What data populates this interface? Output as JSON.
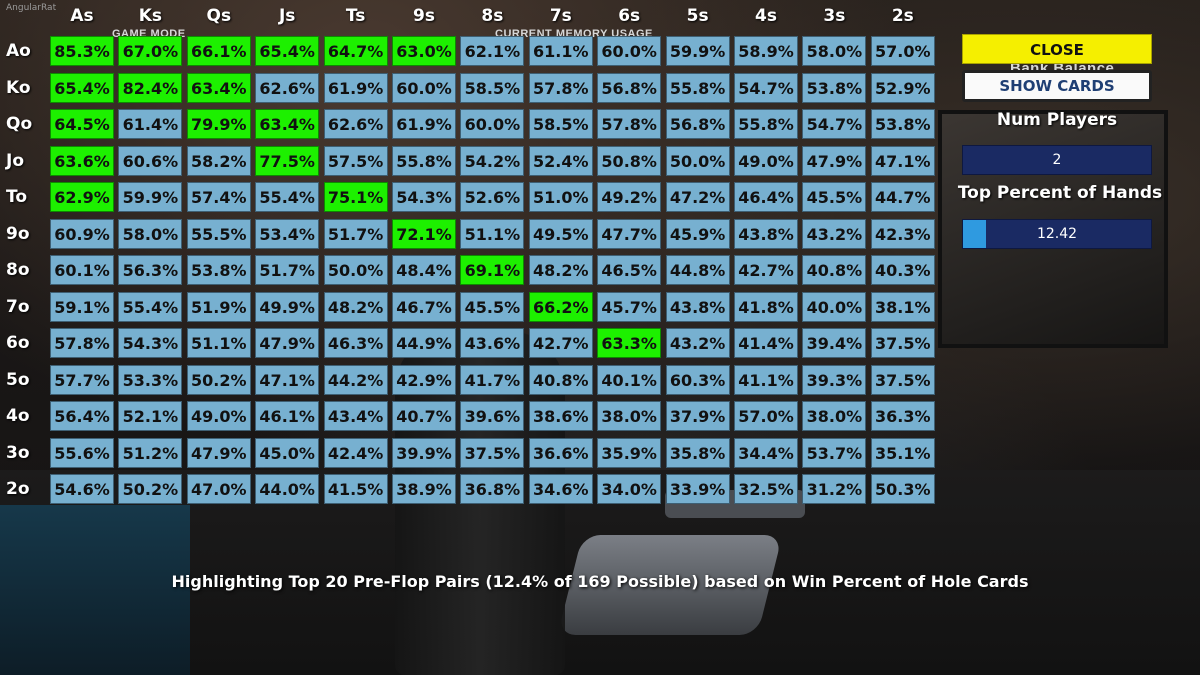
{
  "app": {
    "user_label": "AngularRat"
  },
  "ghost": {
    "game_mode": "GAME MODE",
    "current_memory": "CURRENT MEMORY USAGE",
    "bank_balance": "Bank Balance"
  },
  "grid": {
    "columns": [
      "As",
      "Ks",
      "Qs",
      "Js",
      "Ts",
      "9s",
      "8s",
      "7s",
      "6s",
      "5s",
      "4s",
      "3s",
      "2s"
    ],
    "rows": [
      "Ao",
      "Ko",
      "Qo",
      "Jo",
      "To",
      "9o",
      "8o",
      "7o",
      "6o",
      "5o",
      "4o",
      "3o",
      "2o"
    ],
    "cells": [
      [
        "85.3%",
        "67.0%",
        "66.1%",
        "65.4%",
        "64.7%",
        "63.0%",
        "62.1%",
        "61.1%",
        "60.0%",
        "59.9%",
        "58.9%",
        "58.0%",
        "57.0%"
      ],
      [
        "65.4%",
        "82.4%",
        "63.4%",
        "62.6%",
        "61.9%",
        "60.0%",
        "58.5%",
        "57.8%",
        "56.8%",
        "55.8%",
        "54.7%",
        "53.8%",
        "52.9%"
      ],
      [
        "64.5%",
        "61.4%",
        "79.9%",
        "63.4%",
        "62.6%",
        "61.9%",
        "60.0%",
        "58.5%",
        "57.8%",
        "56.8%",
        "55.8%",
        "54.7%",
        "53.8%"
      ],
      [
        "63.6%",
        "60.6%",
        "58.2%",
        "77.5%",
        "57.5%",
        "55.8%",
        "54.2%",
        "52.4%",
        "50.8%",
        "50.0%",
        "49.0%",
        "47.9%",
        "47.1%"
      ],
      [
        "62.9%",
        "59.9%",
        "57.4%",
        "55.4%",
        "75.1%",
        "54.3%",
        "52.6%",
        "51.0%",
        "49.2%",
        "47.2%",
        "46.4%",
        "45.5%",
        "44.7%"
      ],
      [
        "60.9%",
        "58.0%",
        "55.5%",
        "53.4%",
        "51.7%",
        "72.1%",
        "51.1%",
        "49.5%",
        "47.7%",
        "45.9%",
        "43.8%",
        "43.2%",
        "42.3%"
      ],
      [
        "60.1%",
        "56.3%",
        "53.8%",
        "51.7%",
        "50.0%",
        "48.4%",
        "69.1%",
        "48.2%",
        "46.5%",
        "44.8%",
        "42.7%",
        "40.8%",
        "40.3%"
      ],
      [
        "59.1%",
        "55.4%",
        "51.9%",
        "49.9%",
        "48.2%",
        "46.7%",
        "45.5%",
        "66.2%",
        "45.7%",
        "43.8%",
        "41.8%",
        "40.0%",
        "38.1%"
      ],
      [
        "57.8%",
        "54.3%",
        "51.1%",
        "47.9%",
        "46.3%",
        "44.9%",
        "43.6%",
        "42.7%",
        "63.3%",
        "43.2%",
        "41.4%",
        "39.4%",
        "37.5%"
      ],
      [
        "57.7%",
        "53.3%",
        "50.2%",
        "47.1%",
        "44.2%",
        "42.9%",
        "41.7%",
        "40.8%",
        "40.1%",
        "60.3%",
        "41.1%",
        "39.3%",
        "37.5%"
      ],
      [
        "56.4%",
        "52.1%",
        "49.0%",
        "46.1%",
        "43.4%",
        "40.7%",
        "39.6%",
        "38.6%",
        "38.0%",
        "37.9%",
        "57.0%",
        "38.0%",
        "36.3%"
      ],
      [
        "55.6%",
        "51.2%",
        "47.9%",
        "45.0%",
        "42.4%",
        "39.9%",
        "37.5%",
        "36.6%",
        "35.9%",
        "35.8%",
        "34.4%",
        "53.7%",
        "35.1%"
      ],
      [
        "54.6%",
        "50.2%",
        "47.0%",
        "44.0%",
        "41.5%",
        "38.9%",
        "36.8%",
        "34.6%",
        "34.0%",
        "33.9%",
        "32.5%",
        "31.2%",
        "50.3%"
      ]
    ],
    "highlighted": [
      [
        0,
        0
      ],
      [
        0,
        1
      ],
      [
        0,
        2
      ],
      [
        0,
        3
      ],
      [
        0,
        4
      ],
      [
        0,
        5
      ],
      [
        1,
        0
      ],
      [
        1,
        1
      ],
      [
        1,
        2
      ],
      [
        2,
        0
      ],
      [
        2,
        2
      ],
      [
        2,
        3
      ],
      [
        3,
        0
      ],
      [
        3,
        3
      ],
      [
        4,
        0
      ],
      [
        4,
        4
      ],
      [
        5,
        5
      ],
      [
        6,
        6
      ],
      [
        7,
        7
      ],
      [
        8,
        8
      ]
    ],
    "colors": {
      "normal": "#77b0d0",
      "highlight": "#1df000"
    }
  },
  "panel": {
    "close_label": "CLOSE",
    "show_cards_label": "SHOW CARDS",
    "num_players_label": "Num Players",
    "num_players_value": "2",
    "top_percent_label": "Top Percent of Hands",
    "top_percent_value": "12.42",
    "top_percent_fraction": 0.1242
  },
  "footer": "Highlighting Top 20 Pre-Flop Pairs (12.4% of 169 Possible) based on Win Percent of Hole Cards"
}
